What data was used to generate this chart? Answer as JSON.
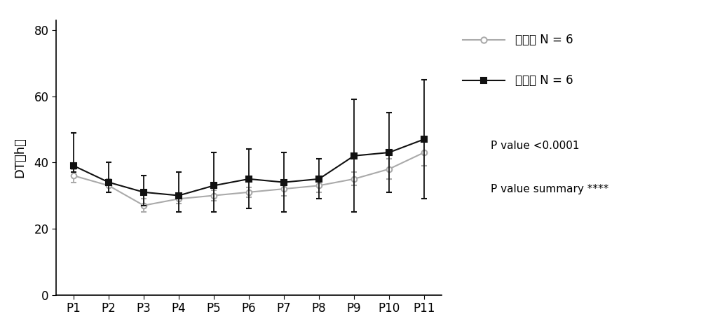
{
  "x_labels": [
    "P1",
    "P2",
    "P3",
    "P4",
    "P5",
    "P6",
    "P7",
    "P8",
    "P9",
    "P10",
    "P11"
  ],
  "filter_mean": [
    36,
    33,
    27,
    29,
    30,
    31,
    32,
    33,
    35,
    38,
    43
  ],
  "filter_err_lo": [
    2,
    2,
    2,
    1.5,
    1.5,
    1.5,
    2,
    2,
    2,
    3,
    4
  ],
  "filter_err_hi": [
    2,
    2,
    2,
    1.5,
    1.5,
    1.5,
    2,
    2,
    2,
    3,
    4
  ],
  "buffy_mean": [
    39,
    34,
    31,
    30,
    33,
    35,
    34,
    35,
    42,
    43,
    47
  ],
  "buffy_err_lo": [
    2,
    3,
    4,
    5,
    8,
    9,
    9,
    6,
    17,
    12,
    18
  ],
  "buffy_err_hi": [
    10,
    6,
    5,
    7,
    10,
    9,
    9,
    6,
    17,
    12,
    18
  ],
  "filter_color": "#aaaaaa",
  "buffy_color": "#111111",
  "ylabel": "DT（h）",
  "yticks": [
    0,
    20,
    40,
    60,
    80
  ],
  "ylim": [
    0,
    83
  ],
  "legend_label_filter": "过滤法 N = 6",
  "legend_label_buffy": "白膜法 N = 6",
  "annotation_line1": "P value <0.0001",
  "annotation_line2": "P value summary ****",
  "background_color": "#ffffff"
}
